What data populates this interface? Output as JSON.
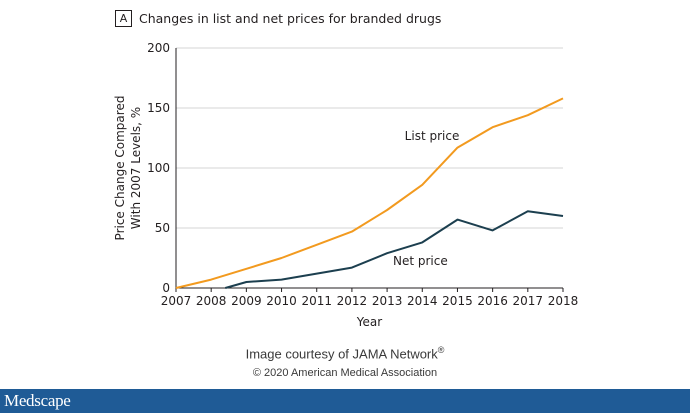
{
  "panel": {
    "letter": "A",
    "title": "Changes in list and net prices for branded drugs"
  },
  "chart_data": {
    "type": "line",
    "title": "Changes in list and net prices for branded drugs",
    "xlabel": "Year",
    "ylabel_lines": [
      "Price Change Compared",
      "With 2007 Levels, %"
    ],
    "xlim": [
      2007,
      2018
    ],
    "ylim": [
      0,
      200
    ],
    "xticks": [
      2007,
      2008,
      2009,
      2010,
      2011,
      2012,
      2013,
      2014,
      2015,
      2016,
      2017,
      2018
    ],
    "yticks": [
      0,
      50,
      100,
      150,
      200
    ],
    "grid": "horizontal",
    "series": [
      {
        "name": "List price",
        "color": "#f29a1f",
        "points": [
          [
            2007,
            0
          ],
          [
            2008,
            7
          ],
          [
            2009,
            16
          ],
          [
            2010,
            25
          ],
          [
            2011,
            36
          ],
          [
            2012,
            47
          ],
          [
            2013,
            65
          ],
          [
            2014,
            86
          ],
          [
            2015,
            117
          ],
          [
            2016,
            134
          ],
          [
            2017,
            144
          ],
          [
            2018,
            158
          ]
        ]
      },
      {
        "name": "Net price",
        "color": "#1c3f4f",
        "points": [
          [
            2008.4,
            0
          ],
          [
            2009,
            5
          ],
          [
            2010,
            7
          ],
          [
            2011,
            12
          ],
          [
            2012,
            17
          ],
          [
            2013,
            29
          ],
          [
            2014,
            38
          ],
          [
            2015,
            57
          ],
          [
            2016,
            48
          ],
          [
            2017,
            64
          ],
          [
            2018,
            60
          ]
        ]
      }
    ]
  },
  "credits": {
    "line1": "Image courtesy of JAMA Network",
    "reg_mark": "®",
    "line2": "© 2020 American Medical Association"
  },
  "footer": {
    "brand": "Medscape"
  }
}
